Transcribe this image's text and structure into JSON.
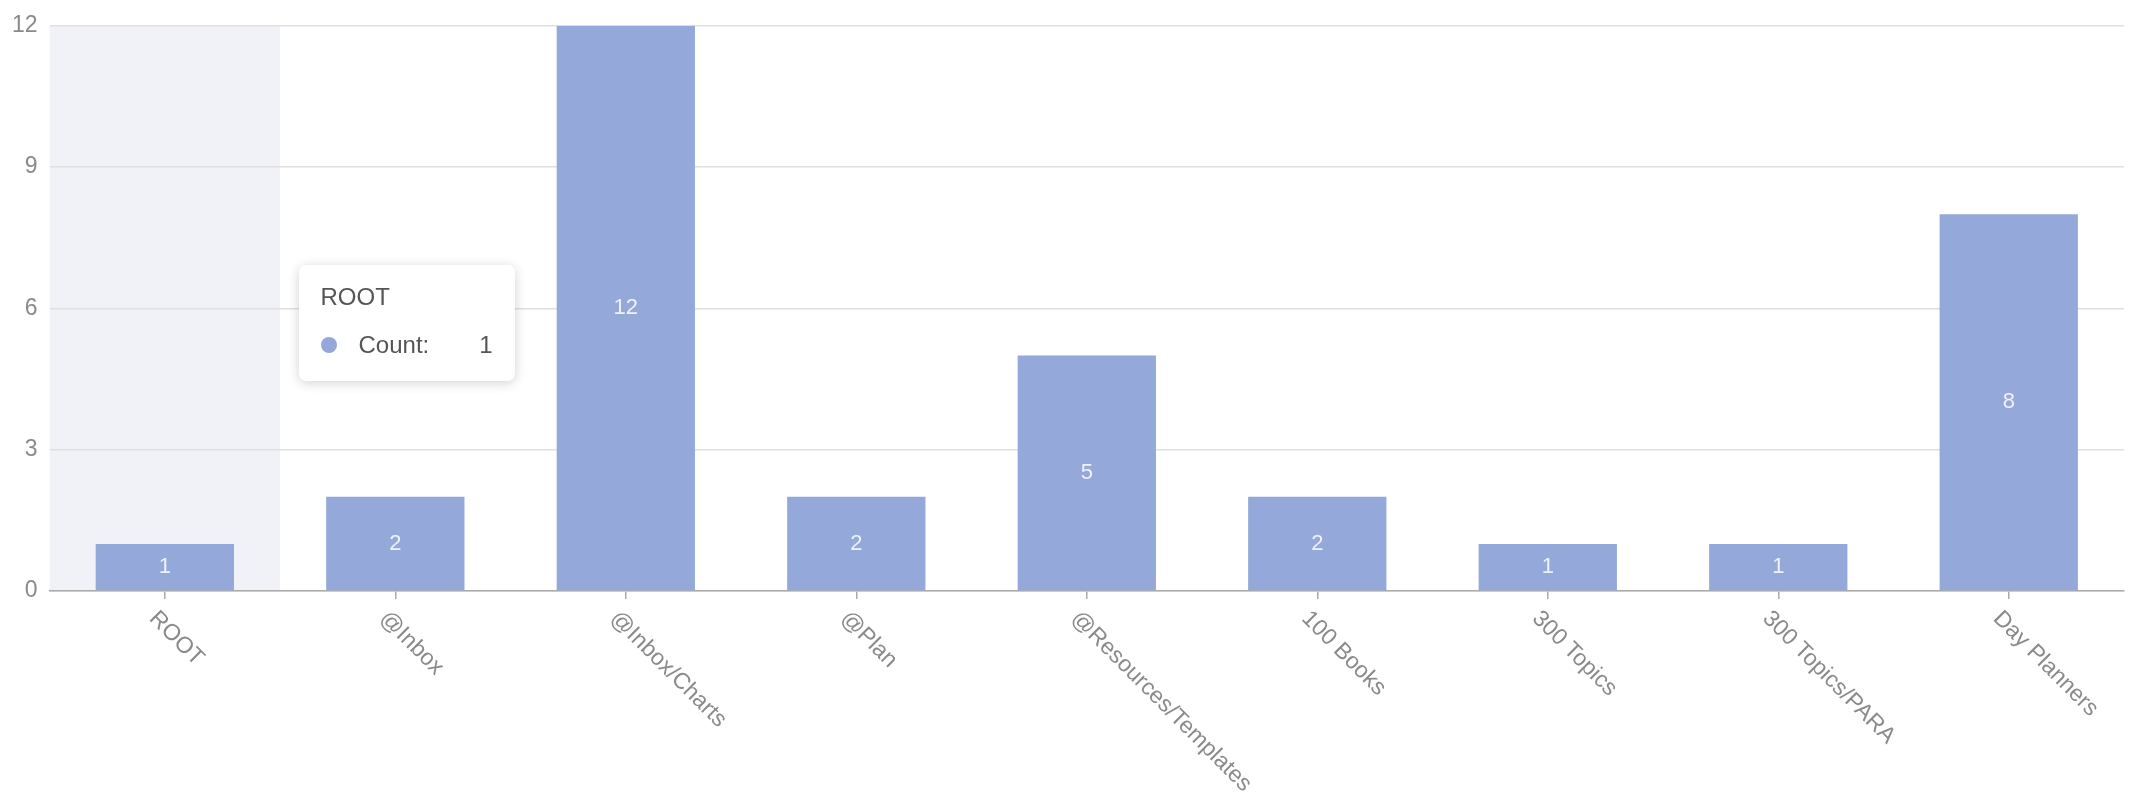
{
  "chart_data": {
    "type": "bar",
    "categories": [
      "ROOT",
      "@Inbox",
      "@Inbox/Charts",
      "@Plan",
      "@Resources/Templates",
      "100 Books",
      "300 Topics",
      "300 Topics/PARA",
      "Day Planners"
    ],
    "values": [
      1,
      2,
      12,
      2,
      5,
      2,
      1,
      1,
      8
    ],
    "color": "#94a8d9",
    "ylim": [
      0,
      12
    ],
    "yticks": [
      0,
      3,
      6,
      9,
      12
    ],
    "grid": "y",
    "data_labels": true,
    "bands": [
      {
        "axis": "x",
        "from": "ROOT",
        "to": "ROOT",
        "color": "#f1f2f7"
      }
    ],
    "annotations": [
      "ROOT",
      "Count:",
      "1"
    ]
  }
}
